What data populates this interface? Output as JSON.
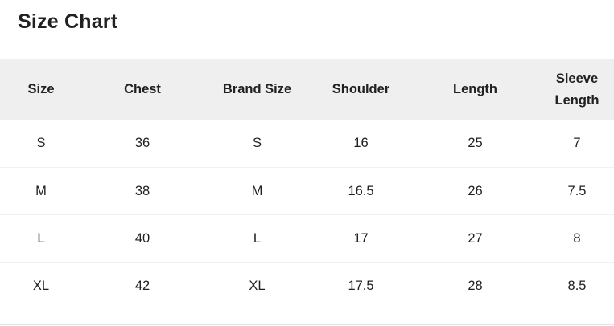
{
  "page": {
    "title": "Size Chart"
  },
  "table": {
    "columns": [
      "Size",
      "Chest",
      "Brand Size",
      "Shoulder",
      "Length",
      "Sleeve Length"
    ],
    "rows": [
      [
        "S",
        "36",
        "S",
        "16",
        "25",
        "7"
      ],
      [
        "M",
        "38",
        "M",
        "16.5",
        "26",
        "7.5"
      ],
      [
        "L",
        "40",
        "L",
        "17",
        "27",
        "8"
      ],
      [
        "XL",
        "42",
        "XL",
        "17.5",
        "28",
        "8.5"
      ]
    ]
  },
  "colors": {
    "text": "#212121",
    "header_background": "#efeff0",
    "row_divider": "#f1f1f2",
    "table_top_border": "#e1e1e3",
    "bottom_divider": "#e4e4e6",
    "background": "#ffffff"
  }
}
